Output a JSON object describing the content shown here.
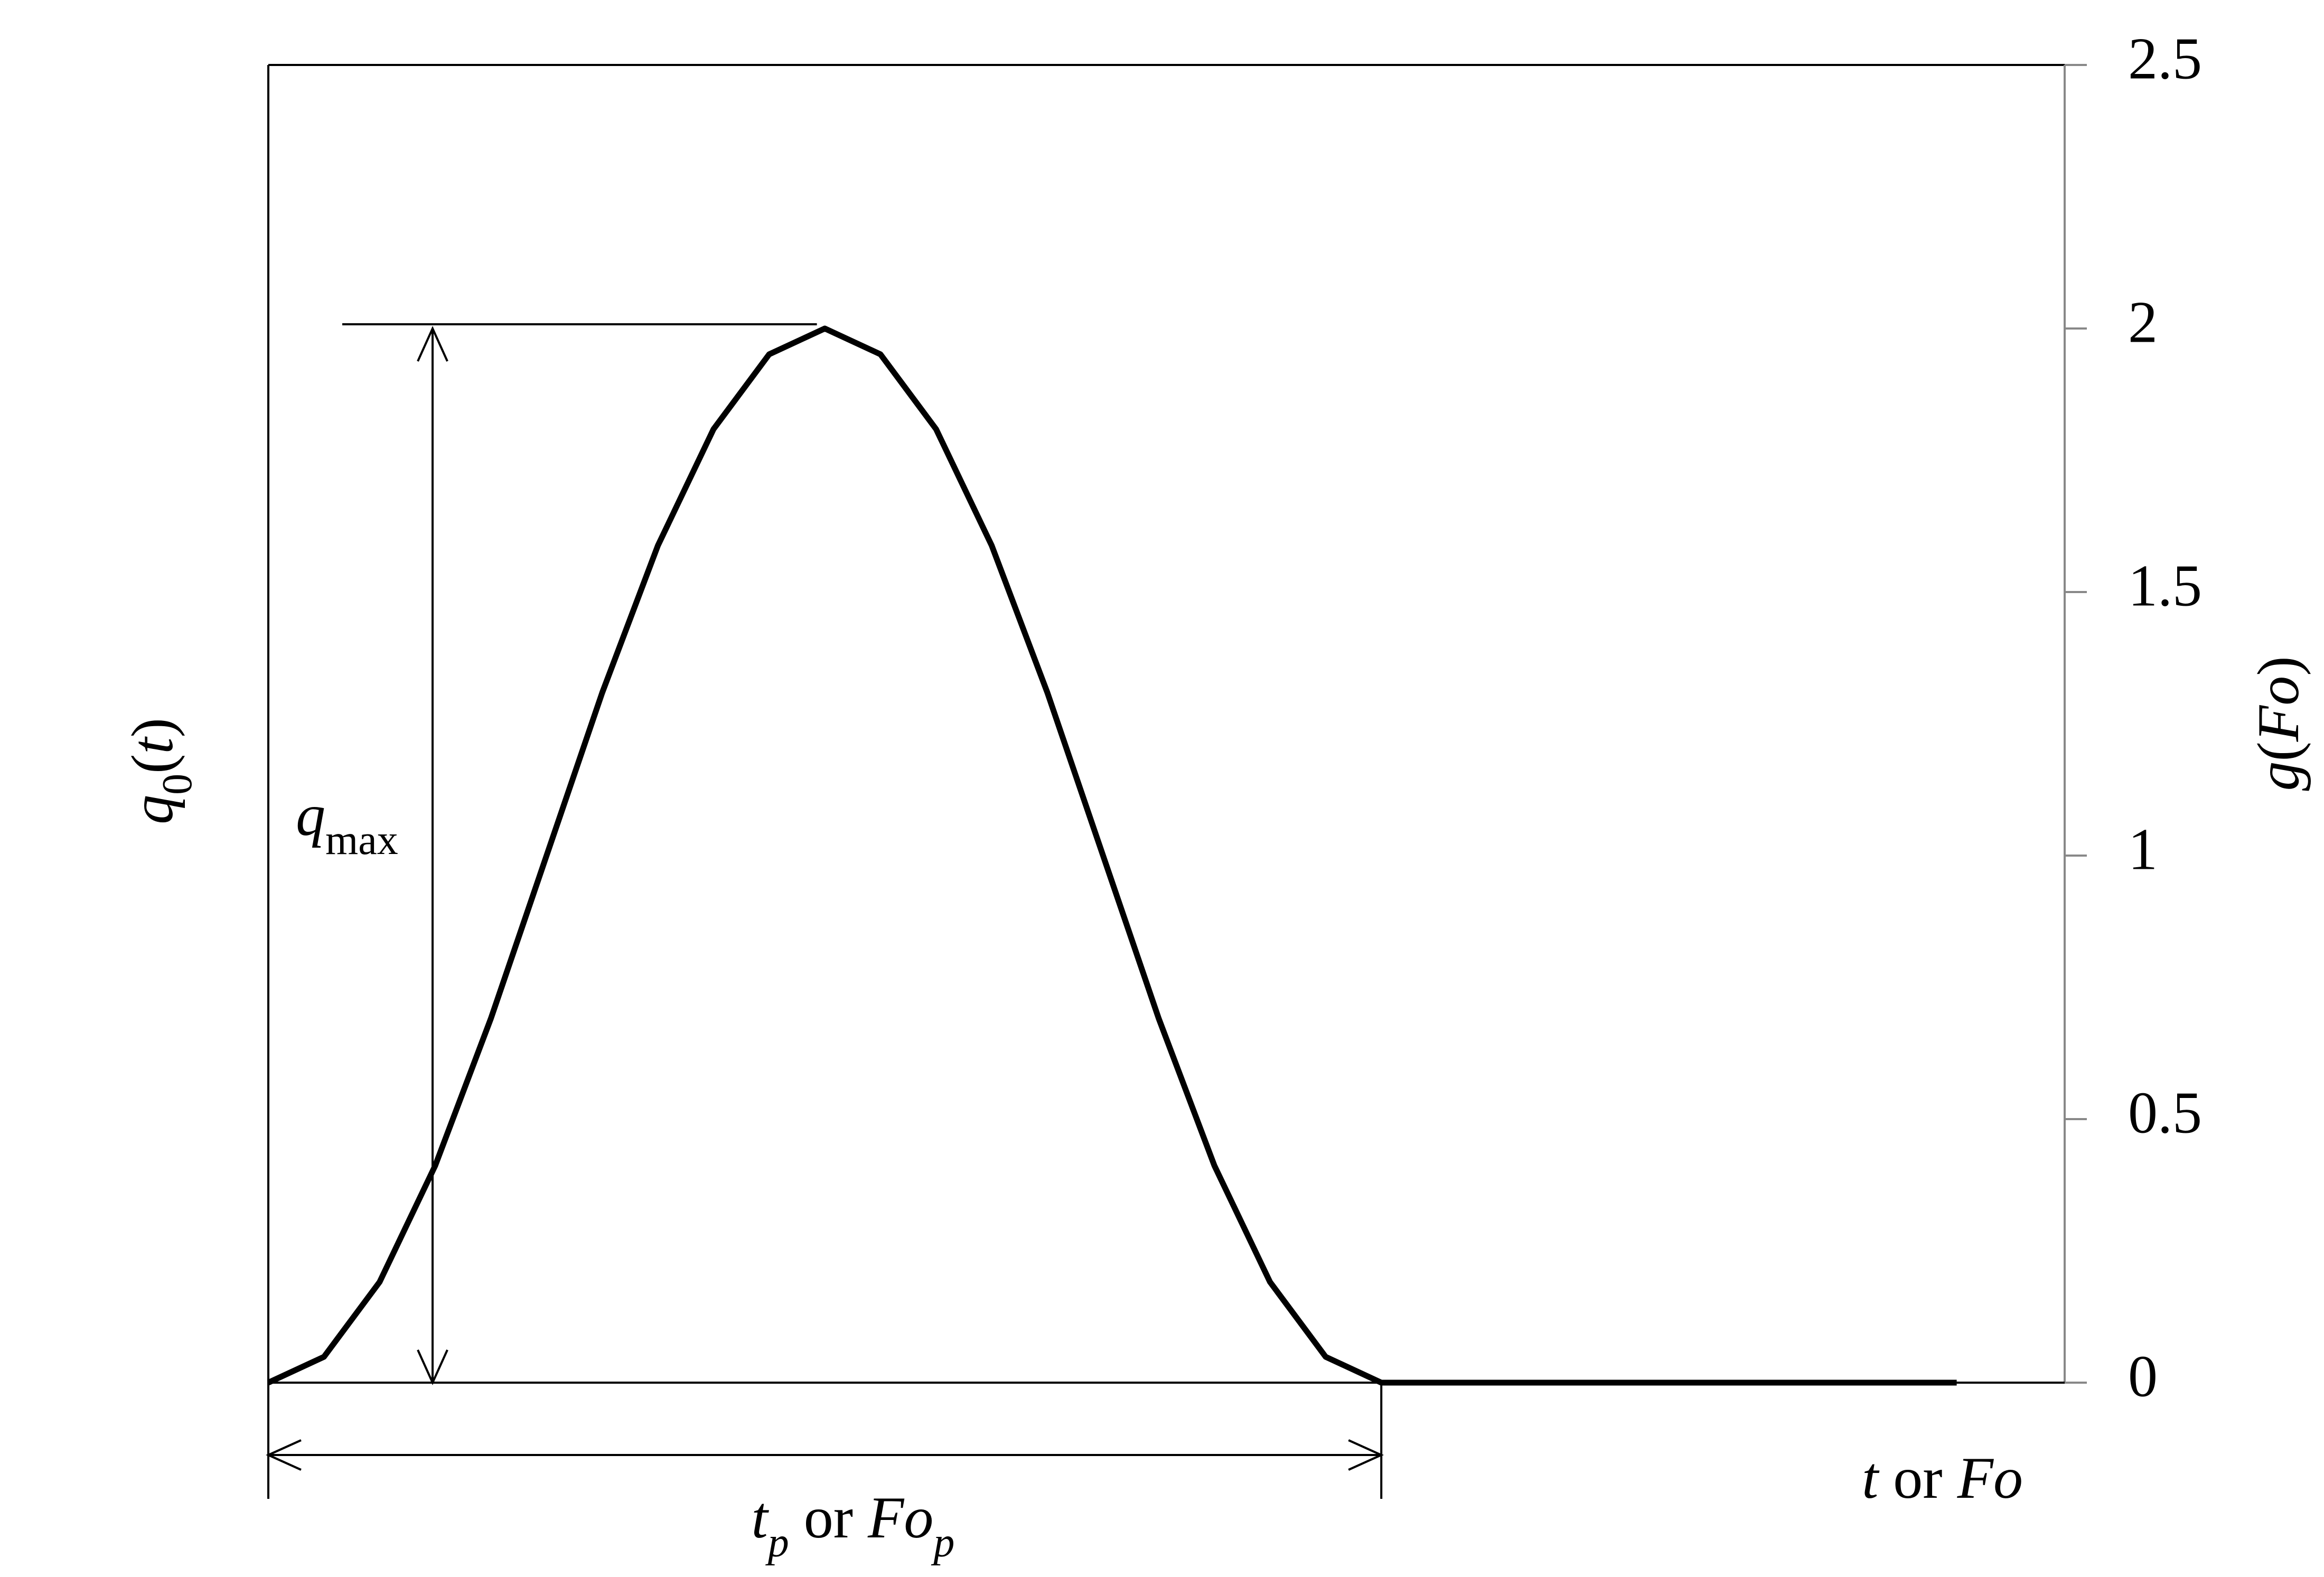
{
  "chart_data": {
    "type": "line",
    "ylabel": [
      {
        "text": "q",
        "italic": true
      },
      {
        "text": "0",
        "sub": true
      },
      {
        "text": "("
      },
      {
        "text": "t",
        "italic": true
      },
      {
        "text": ")"
      }
    ],
    "y2label": [
      {
        "text": "g",
        "italic": true
      },
      {
        "text": "("
      },
      {
        "text": "Fo",
        "italic": true
      },
      {
        "text": ")"
      }
    ],
    "xlabel": [
      {
        "text": "t",
        "italic": true
      },
      {
        "text": " or "
      },
      {
        "text": "Fo",
        "italic": true
      }
    ],
    "annotations": [
      [
        {
          "text": "q",
          "italic": true
        },
        {
          "text": "max",
          "sub": true
        }
      ],
      [
        {
          "text": "t",
          "italic": true
        },
        {
          "text": "p",
          "sub": true,
          "italic": true
        },
        {
          "text": " or "
        },
        {
          "text": "Fo",
          "italic": true
        },
        {
          "text": "p",
          "sub": true,
          "italic": true
        }
      ]
    ],
    "x": [
      0,
      0.05,
      0.1,
      0.15,
      0.2,
      0.25,
      0.3,
      0.35,
      0.4,
      0.45,
      0.5,
      0.55,
      0.6,
      0.65,
      0.7,
      0.75,
      0.8,
      0.85,
      0.9,
      0.95,
      1.0,
      1.517
    ],
    "series": [
      {
        "color": "#000000",
        "axis": "y2",
        "values": [
          0,
          0.049,
          0.191,
          0.412,
          0.691,
          1,
          1.309,
          1.588,
          1.809,
          1.951,
          2,
          1.951,
          1.809,
          1.588,
          1.309,
          1,
          0.691,
          0.412,
          0.191,
          0.049,
          0,
          0
        ]
      }
    ],
    "xlim": [
      0,
      1.614
    ],
    "y2lim": [
      0,
      2.5
    ],
    "y2ticks": [
      0,
      0.5,
      1,
      1.5,
      2,
      2.5
    ]
  }
}
